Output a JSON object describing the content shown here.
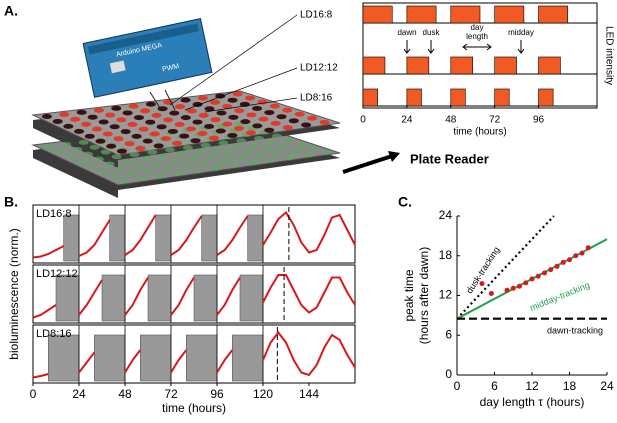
{
  "panel_labels": [
    "A.",
    "B.",
    "C."
  ],
  "illustration": {
    "board": "Arduino MEGA",
    "pwm": "PWM",
    "plate_reader": "Plate Reader"
  },
  "chart_data": [
    {
      "type": "schedule",
      "xlabel": "time (hours)",
      "ylabel": "LED intensity",
      "xlim": [
        0,
        128
      ],
      "xticks": [
        0,
        24,
        48,
        72,
        96
      ],
      "color": "#f15a24",
      "series": [
        {
          "name": "LD16:8",
          "starts": [
            0,
            24,
            48,
            72,
            96
          ],
          "values": [
            16,
            16,
            16,
            16,
            16
          ]
        },
        {
          "name": "LD12:12",
          "starts": [
            0,
            24,
            48,
            72,
            96
          ],
          "values": [
            12,
            12,
            12,
            12,
            12
          ]
        },
        {
          "name": "LD8:16",
          "starts": [
            0,
            24,
            48,
            72,
            96
          ],
          "values": [
            8,
            8,
            8,
            8,
            8
          ]
        }
      ],
      "annotations": {
        "dawn": "dawn",
        "dusk": "dusk",
        "day_length": [
          "day",
          "length"
        ],
        "midday": "midday"
      }
    },
    {
      "type": "line",
      "xlabel": "time (hours)",
      "ylabel": "bioluminescence (norm.)",
      "xlim": [
        0,
        168
      ],
      "ylim": [
        0,
        1
      ],
      "xticks": [
        0,
        24,
        48,
        72,
        96,
        120,
        144
      ],
      "color": "#d7191c",
      "x": [
        0,
        4,
        8,
        12,
        16,
        20,
        24,
        28,
        32,
        36,
        40,
        44,
        48,
        52,
        56,
        60,
        64,
        68,
        72,
        76,
        80,
        84,
        88,
        92,
        96,
        100,
        104,
        108,
        112,
        116,
        120,
        124,
        128,
        132,
        136,
        140,
        144,
        148,
        152,
        156,
        160,
        164,
        168
      ],
      "series": [
        {
          "name": "LD16:8",
          "dark_starts": [
            16,
            40,
            64,
            88,
            112
          ],
          "dark_ends": [
            24,
            48,
            72,
            96,
            120
          ],
          "peak": 133.5,
          "values": [
            0.05,
            0.07,
            0.12,
            0.2,
            0.28,
            null,
            0.08,
            0.15,
            0.3,
            0.55,
            0.8,
            null,
            0.1,
            0.2,
            0.4,
            0.65,
            0.9,
            null,
            0.1,
            0.2,
            0.4,
            0.65,
            0.88,
            null,
            0.1,
            0.2,
            0.4,
            0.65,
            0.88,
            null,
            0.3,
            0.55,
            0.82,
            0.95,
            0.7,
            0.35,
            0.15,
            0.2,
            0.5,
            0.85,
            0.9,
            0.6,
            0.3
          ]
        },
        {
          "name": "LD12:12",
          "dark_starts": [
            12,
            36,
            60,
            84,
            108
          ],
          "dark_ends": [
            24,
            48,
            72,
            96,
            120
          ],
          "peak": 131,
          "values": [
            0.05,
            0.1,
            0.2,
            0.3,
            null,
            null,
            0.1,
            0.3,
            0.55,
            0.8,
            null,
            null,
            0.1,
            0.3,
            0.6,
            0.85,
            null,
            null,
            0.1,
            0.3,
            0.6,
            0.85,
            null,
            null,
            0.1,
            0.3,
            0.6,
            0.85,
            null,
            null,
            0.35,
            0.65,
            0.9,
            0.9,
            0.6,
            0.3,
            0.15,
            0.25,
            0.55,
            0.85,
            0.85,
            0.55,
            0.3
          ]
        },
        {
          "name": "LD8:16",
          "dark_starts": [
            8,
            32,
            56,
            80,
            104
          ],
          "dark_ends": [
            24,
            48,
            72,
            96,
            120
          ],
          "peak": 127.5,
          "values": [
            0.05,
            0.08,
            0.12,
            null,
            null,
            null,
            0.15,
            0.35,
            0.55,
            null,
            null,
            null,
            0.15,
            0.4,
            0.6,
            null,
            null,
            null,
            0.15,
            0.4,
            0.6,
            null,
            null,
            null,
            0.15,
            0.4,
            0.6,
            null,
            null,
            null,
            0.4,
            0.75,
            0.95,
            0.75,
            0.4,
            0.15,
            0.1,
            0.3,
            0.65,
            0.9,
            0.8,
            0.5,
            0.25
          ]
        }
      ]
    },
    {
      "type": "scatter",
      "xlabel": "day length τ (hours)",
      "ylabel": [
        "peak time",
        "(hours after dawn)"
      ],
      "xlim": [
        0,
        24
      ],
      "ylim": [
        0,
        24
      ],
      "xticks": [
        0,
        6,
        12,
        18,
        24
      ],
      "yticks": [
        0,
        6,
        12,
        18,
        24
      ],
      "color": "#d7191c",
      "x": [
        4,
        5.5,
        8,
        9,
        10,
        11,
        12,
        13,
        14,
        15,
        16,
        17,
        18,
        19,
        20,
        21
      ],
      "values": [
        13.8,
        12.3,
        12.8,
        13.1,
        13.4,
        13.9,
        14.5,
        14.9,
        15.4,
        15.9,
        16.4,
        17.0,
        17.4,
        18.0,
        18.4,
        19.2
      ],
      "lines": [
        {
          "name": "dusk-tracking",
          "style": "dotted",
          "color": "#000000",
          "x": [
            0,
            15.5
          ],
          "values": [
            8.5,
            24
          ]
        },
        {
          "name": "midday-tracking",
          "style": "solid",
          "color": "#1fa34a",
          "x": [
            0,
            24
          ],
          "values": [
            8.5,
            20.5
          ]
        },
        {
          "name": "dawn-tracking",
          "style": "dashed",
          "color": "#000000",
          "x": [
            0,
            24
          ],
          "values": [
            8.5,
            8.5
          ]
        }
      ]
    }
  ]
}
